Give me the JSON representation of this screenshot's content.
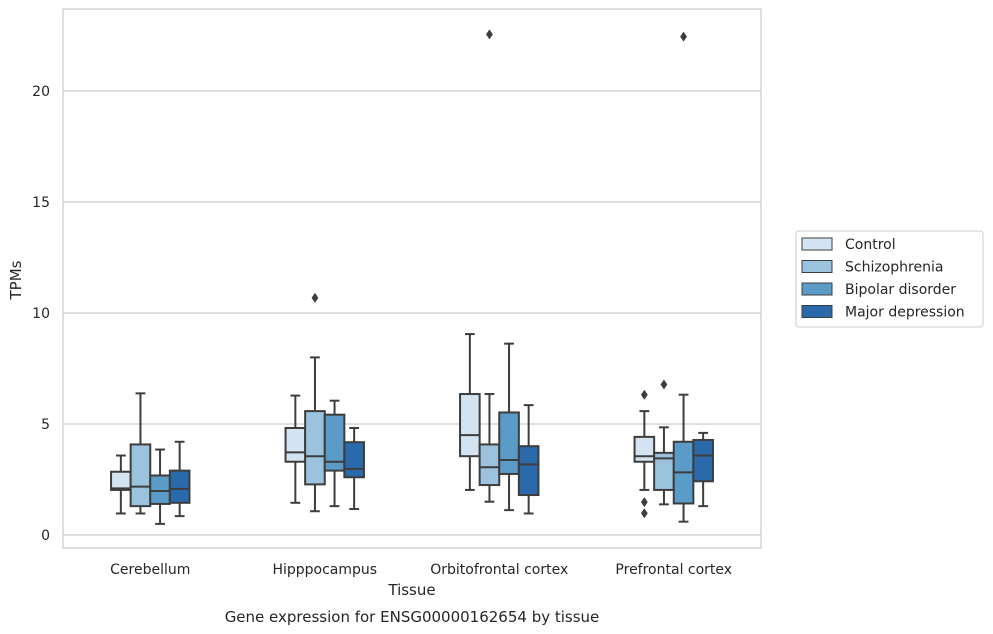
{
  "chart_data": {
    "type": "boxplot",
    "caption": "Gene expression for ENSG00000162654 by tissue",
    "xlabel": "Tissue",
    "ylabel": "TPMs",
    "ylim": [
      -0.6,
      23.6
    ],
    "yticks": [
      0,
      5,
      10,
      15,
      20
    ],
    "grid": true,
    "legend_position": "right",
    "categories": [
      "Cerebellum",
      "Hipppocampus",
      "Orbitofrontal cortex",
      "Prefrontal cortex"
    ],
    "series": [
      {
        "name": "Control",
        "color": "#d4e3f2",
        "boxes": [
          {
            "whislo": 0.97,
            "q1": 2.03,
            "med": 2.1,
            "q3": 2.85,
            "whishi": 3.58,
            "fliers": []
          },
          {
            "whislo": 1.45,
            "q1": 3.3,
            "med": 3.72,
            "q3": 4.82,
            "whishi": 6.28,
            "fliers": []
          },
          {
            "whislo": 2.03,
            "q1": 3.55,
            "med": 4.5,
            "q3": 6.35,
            "whishi": 9.05,
            "fliers": []
          },
          {
            "whislo": 2.03,
            "q1": 3.3,
            "med": 3.55,
            "q3": 4.42,
            "whishi": 5.58,
            "fliers": [
              0.98,
              1.48,
              6.32
            ]
          }
        ]
      },
      {
        "name": "Schizophrenia",
        "color": "#9cc3dd",
        "boxes": [
          {
            "whislo": 0.97,
            "q1": 1.3,
            "med": 2.18,
            "q3": 4.08,
            "whishi": 6.38,
            "fliers": []
          },
          {
            "whislo": 1.07,
            "q1": 2.28,
            "med": 3.55,
            "q3": 5.58,
            "whishi": 8.0,
            "fliers": [
              10.68
            ]
          },
          {
            "whislo": 1.5,
            "q1": 2.25,
            "med": 3.05,
            "q3": 4.08,
            "whishi": 6.35,
            "fliers": [
              22.55
            ]
          },
          {
            "whislo": 1.38,
            "q1": 2.03,
            "med": 3.45,
            "q3": 3.7,
            "whishi": 4.85,
            "fliers": [
              6.78
            ]
          }
        ]
      },
      {
        "name": "Bipolar disorder",
        "color": "#5b9bc8",
        "boxes": [
          {
            "whislo": 0.5,
            "q1": 1.4,
            "med": 1.98,
            "q3": 2.68,
            "whishi": 3.85,
            "fliers": []
          },
          {
            "whislo": 1.3,
            "q1": 2.9,
            "med": 3.3,
            "q3": 5.42,
            "whishi": 6.05,
            "fliers": []
          },
          {
            "whislo": 1.12,
            "q1": 2.75,
            "med": 3.38,
            "q3": 5.52,
            "whishi": 8.62,
            "fliers": []
          },
          {
            "whislo": 0.6,
            "q1": 1.42,
            "med": 2.82,
            "q3": 4.2,
            "whishi": 6.32,
            "fliers": [
              22.45
            ]
          }
        ]
      },
      {
        "name": "Major depression",
        "color": "#2a6aab",
        "boxes": [
          {
            "whislo": 0.85,
            "q1": 1.45,
            "med": 2.08,
            "q3": 2.9,
            "whishi": 4.2,
            "fliers": []
          },
          {
            "whislo": 1.17,
            "q1": 2.6,
            "med": 2.98,
            "q3": 4.18,
            "whishi": 4.82,
            "fliers": []
          },
          {
            "whislo": 0.97,
            "q1": 1.8,
            "med": 3.18,
            "q3": 4.0,
            "whishi": 5.85,
            "fliers": []
          },
          {
            "whislo": 1.3,
            "q1": 2.42,
            "med": 3.58,
            "q3": 4.28,
            "whishi": 4.6,
            "fliers": []
          }
        ]
      }
    ]
  }
}
